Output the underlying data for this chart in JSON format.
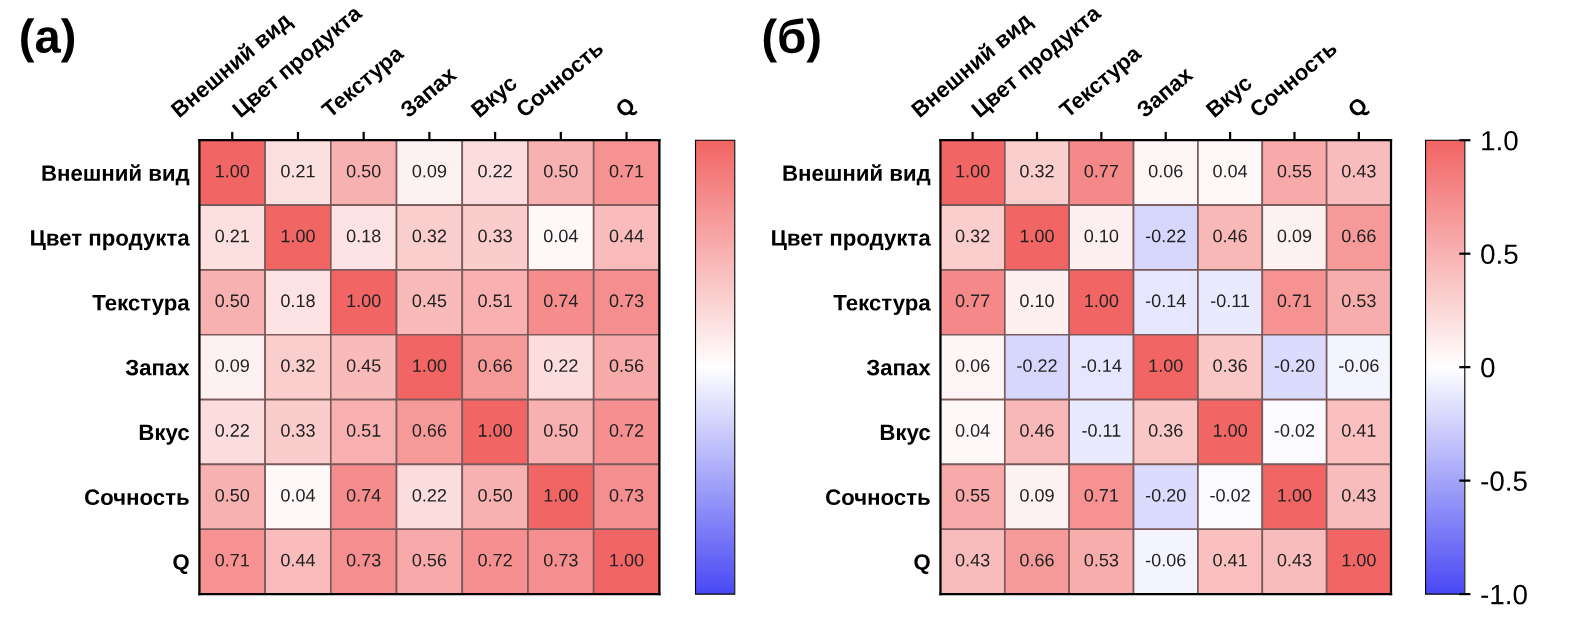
{
  "chart_data": [
    {
      "type": "heatmap",
      "title": "(а)",
      "categories": [
        "Внешний вид",
        "Цвет продукта",
        "Текстура",
        "Запах",
        "Вкус",
        "Сочность",
        "Q"
      ],
      "y_categories": [
        "Внешний вид",
        "Цвет продукта",
        "Текстура",
        "Запах",
        "Вкус",
        "Сочность",
        "Q"
      ],
      "cells": [
        [
          1.0,
          0.21,
          0.5,
          0.09,
          0.22,
          0.5,
          0.71
        ],
        [
          0.21,
          1.0,
          0.18,
          0.32,
          0.33,
          0.04,
          0.44
        ],
        [
          0.5,
          0.18,
          1.0,
          0.45,
          0.51,
          0.74,
          0.73
        ],
        [
          0.09,
          0.32,
          0.45,
          1.0,
          0.66,
          0.22,
          0.56
        ],
        [
          0.22,
          0.33,
          0.51,
          0.66,
          1.0,
          0.5,
          0.72
        ],
        [
          0.5,
          0.04,
          0.74,
          0.22,
          0.5,
          1.0,
          0.73
        ],
        [
          0.71,
          0.44,
          0.73,
          0.56,
          0.72,
          0.73,
          1.0
        ]
      ],
      "cell_labels": [
        [
          "1.00",
          "0.21",
          "0.50",
          "0.09",
          "0.22",
          "0.50",
          "0.71"
        ],
        [
          "0.21",
          "1.00",
          "0.18",
          "0.32",
          "0.33",
          "0.04",
          "0.44"
        ],
        [
          "0.50",
          "0.18",
          "1.00",
          "0.45",
          "0.51",
          "0.74",
          "0.73"
        ],
        [
          "0.09",
          "0.32",
          "0.45",
          "1.00",
          "0.66",
          "0.22",
          "0.56"
        ],
        [
          "0.22",
          "0.33",
          "0.51",
          "0.66",
          "1.00",
          "0.50",
          "0.72"
        ],
        [
          "0.50",
          "0.04",
          "0.74",
          "0.22",
          "0.50",
          "1.00",
          "0.73"
        ],
        [
          "0.71",
          "0.44",
          "0.73",
          "0.56",
          "0.72",
          "0.73",
          "1.00"
        ]
      ],
      "colors": [
        "#4a4af5",
        "#ffffff",
        "#f26565"
      ]
    },
    {
      "type": "heatmap",
      "title": "(б)",
      "categories": [
        "Внешний вид",
        "Цвет продукта",
        "Текстура",
        "Запах",
        "Вкус",
        "Сочность",
        "Q"
      ],
      "y_categories": [
        "Внешний вид",
        "Цвет продукта",
        "Текстура",
        "Запах",
        "Вкус",
        "Сочность",
        "Q"
      ],
      "cells": [
        [
          1.0,
          0.32,
          0.77,
          0.06,
          0.04,
          0.55,
          0.43
        ],
        [
          0.32,
          1.0,
          0.1,
          -0.22,
          0.46,
          0.09,
          0.66
        ],
        [
          0.77,
          0.1,
          1.0,
          -0.14,
          -0.11,
          0.71,
          0.53
        ],
        [
          0.06,
          -0.22,
          -0.14,
          1.0,
          0.36,
          -0.2,
          -0.06
        ],
        [
          0.04,
          0.46,
          -0.11,
          0.36,
          1.0,
          -0.02,
          0.41
        ],
        [
          0.55,
          0.09,
          0.71,
          -0.2,
          -0.02,
          1.0,
          0.43
        ],
        [
          0.43,
          0.66,
          0.53,
          -0.06,
          0.41,
          0.43,
          1.0
        ]
      ],
      "cell_labels": [
        [
          "1.00",
          "0.32",
          "0.77",
          "0.06",
          "0.04",
          "0.55",
          "0.43"
        ],
        [
          "0.32",
          "1.00",
          "0.10",
          "-0.22",
          "0.46",
          "0.09",
          "0.66"
        ],
        [
          "0.77",
          "0.10",
          "1.00",
          "-0.14",
          "-0.11",
          "0.71",
          "0.53"
        ],
        [
          "0.06",
          "-0.22",
          "-0.14",
          "1.00",
          "0.36",
          "-0.20",
          "-0.06"
        ],
        [
          "0.04",
          "0.46",
          "-0.11",
          "0.36",
          "1.00",
          "-0.02",
          "0.41"
        ],
        [
          "0.55",
          "0.09",
          "0.71",
          "-0.20",
          "-0.02",
          "1.00",
          "0.43"
        ],
        [
          "0.43",
          "0.66",
          "0.53",
          "-0.06",
          "0.41",
          "0.43",
          "1.00"
        ]
      ],
      "colors": [
        "#4a4af5",
        "#ffffff",
        "#f26565"
      ],
      "clim": [
        -1,
        1
      ],
      "cticks": [
        {
          "value": -1,
          "label": "-1.0"
        },
        {
          "value": -0.5,
          "label": "-0.5"
        },
        0,
        {
          "value": 0.5,
          "label": "0.5"
        },
        {
          "value": 1,
          "label": "1.0"
        }
      ]
    }
  ]
}
